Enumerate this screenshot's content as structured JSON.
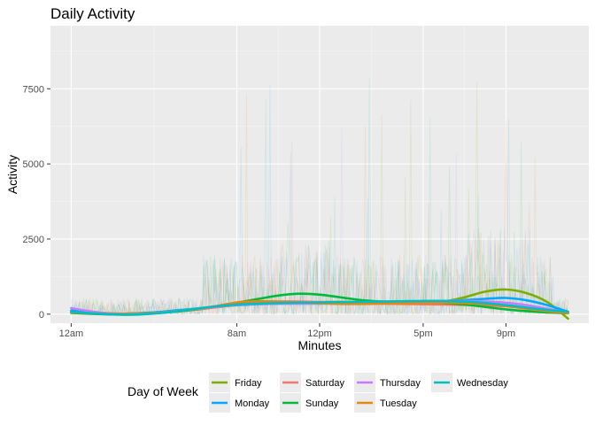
{
  "chart_data": {
    "type": "line",
    "title": "Daily Activity",
    "xlabel": "Minutes",
    "ylabel": "Activity",
    "xlim": [
      -60,
      1500
    ],
    "ylim": [
      -300,
      9600
    ],
    "x_ticks": [
      {
        "value": 0,
        "label": "12am"
      },
      {
        "value": 480,
        "label": "8am"
      },
      {
        "value": 720,
        "label": "12pm"
      },
      {
        "value": 1020,
        "label": "5pm"
      },
      {
        "value": 1260,
        "label": "9pm"
      }
    ],
    "y_ticks": [
      {
        "value": 0,
        "label": "0"
      },
      {
        "value": 2500,
        "label": "2500"
      },
      {
        "value": 5000,
        "label": "5000"
      },
      {
        "value": 7500,
        "label": "7500"
      }
    ],
    "grid": true,
    "legend": {
      "title": "Day of Week",
      "placement": "bottom",
      "order": [
        "Friday",
        "Monday",
        "Saturday",
        "Sunday",
        "Thursday",
        "Tuesday",
        "Wednesday"
      ]
    },
    "x": [
      0,
      60,
      120,
      180,
      240,
      300,
      360,
      420,
      480,
      540,
      600,
      660,
      720,
      780,
      840,
      900,
      960,
      1020,
      1080,
      1140,
      1200,
      1260,
      1320,
      1380,
      1440
    ],
    "series": [
      {
        "name": "Friday",
        "color": "#7CAE00",
        "values": [
          60,
          30,
          10,
          20,
          50,
          90,
          150,
          230,
          300,
          340,
          360,
          380,
          400,
          410,
          400,
          390,
          380,
          380,
          420,
          560,
          750,
          820,
          700,
          400,
          -150
        ]
      },
      {
        "name": "Monday",
        "color": "#00A9FF",
        "values": [
          120,
          60,
          20,
          20,
          60,
          120,
          180,
          250,
          300,
          330,
          350,
          360,
          370,
          380,
          390,
          400,
          410,
          420,
          440,
          470,
          510,
          540,
          460,
          300,
          80
        ]
      },
      {
        "name": "Saturday",
        "color": "#F8766D",
        "values": [
          50,
          20,
          0,
          0,
          30,
          80,
          150,
          230,
          320,
          380,
          420,
          420,
          400,
          380,
          360,
          350,
          340,
          330,
          320,
          310,
          290,
          260,
          200,
          120,
          50
        ]
      },
      {
        "name": "Sunday",
        "color": "#00BA38",
        "values": [
          40,
          10,
          -10,
          0,
          30,
          80,
          160,
          260,
          380,
          500,
          620,
          680,
          650,
          560,
          470,
          420,
          400,
          390,
          370,
          320,
          240,
          160,
          100,
          60,
          30
        ]
      },
      {
        "name": "Thursday",
        "color": "#C77CFF",
        "values": [
          200,
          90,
          20,
          10,
          40,
          100,
          170,
          250,
          310,
          340,
          350,
          350,
          350,
          360,
          370,
          390,
          410,
          430,
          440,
          440,
          420,
          380,
          300,
          180,
          60
        ]
      },
      {
        "name": "Tuesday",
        "color": "#E68613",
        "values": [
          60,
          30,
          10,
          10,
          40,
          90,
          170,
          270,
          390,
          430,
          420,
          390,
          360,
          340,
          340,
          350,
          360,
          370,
          380,
          370,
          330,
          270,
          180,
          100,
          30
        ]
      },
      {
        "name": "Wednesday",
        "color": "#00BFC4",
        "values": [
          80,
          30,
          -10,
          -20,
          20,
          90,
          180,
          260,
          320,
          350,
          370,
          380,
          390,
          400,
          410,
          420,
          430,
          440,
          440,
          420,
          370,
          300,
          220,
          140,
          80
        ]
      }
    ]
  }
}
